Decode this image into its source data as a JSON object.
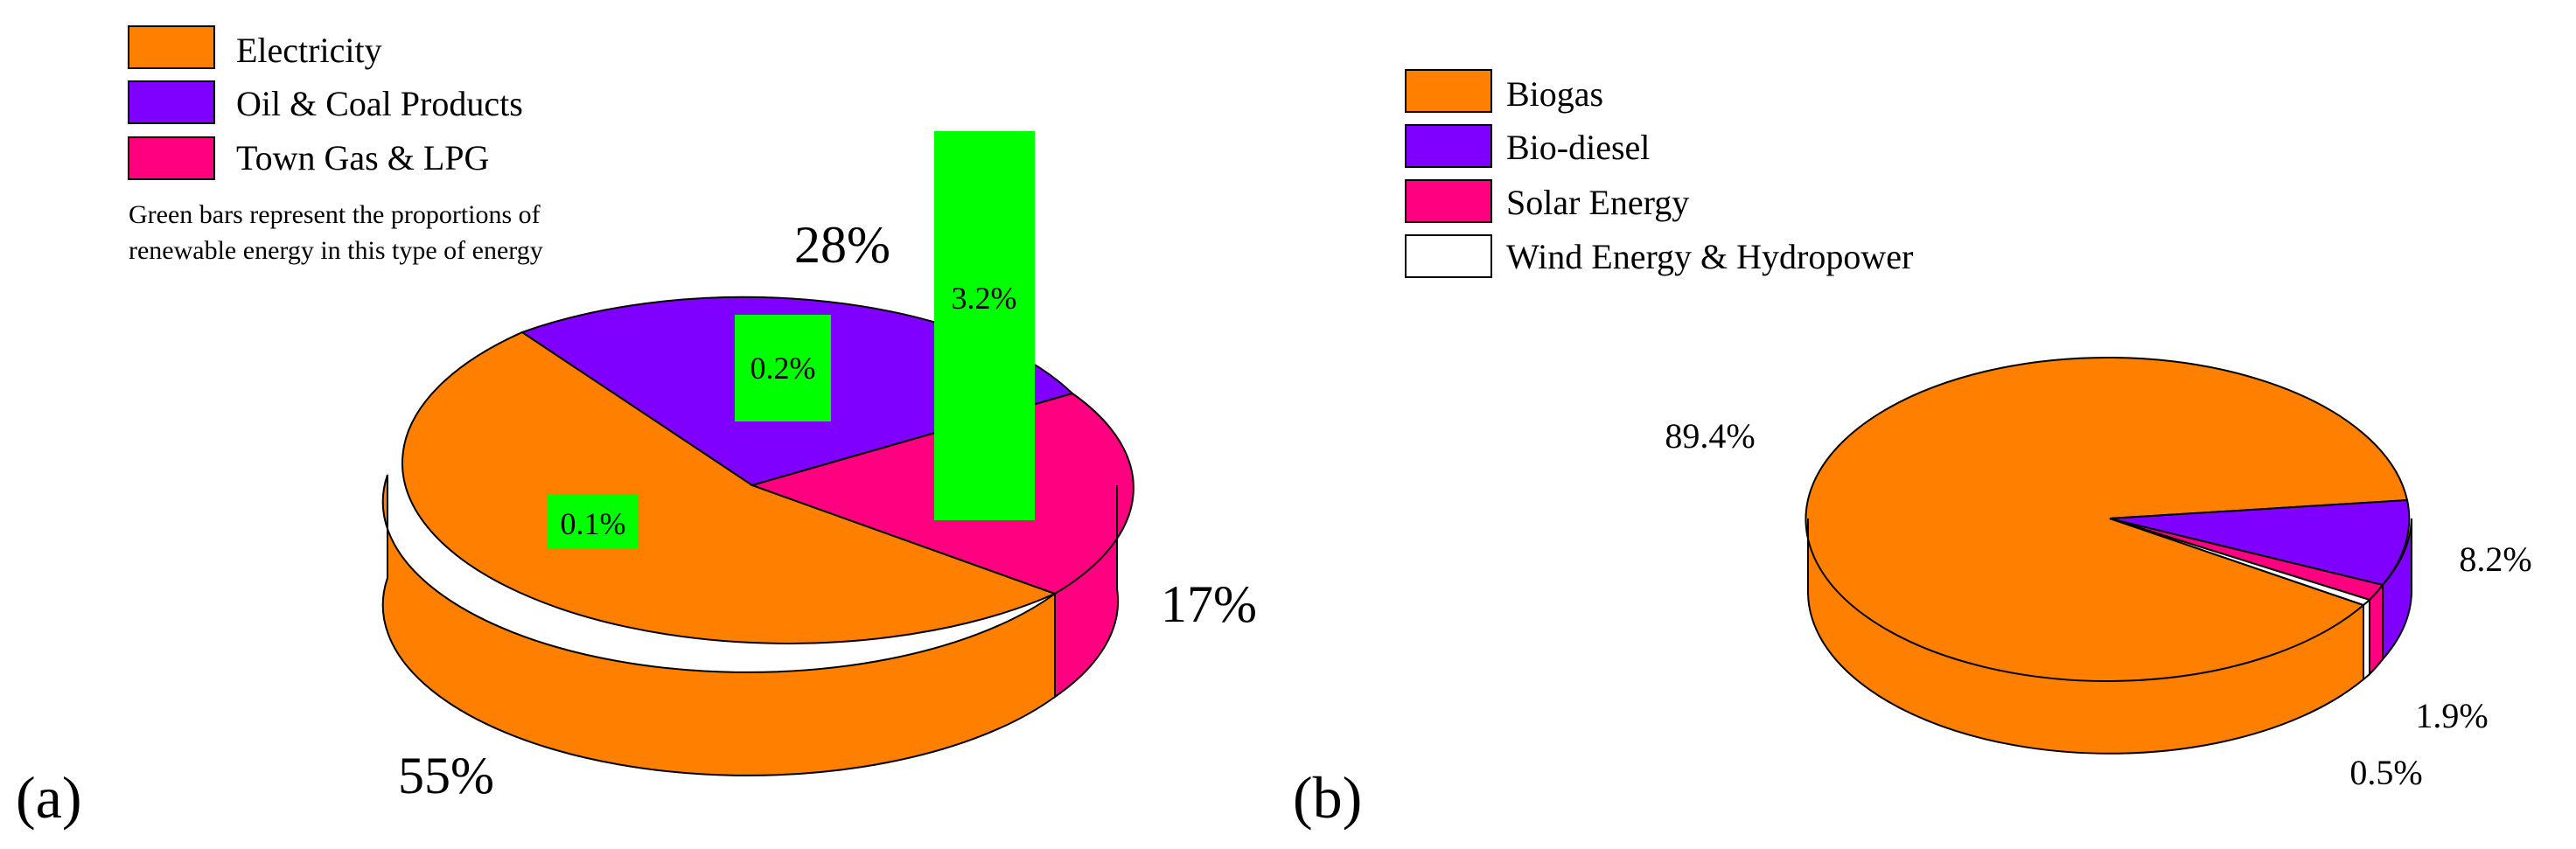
{
  "chart_data": [
    {
      "type": "pie",
      "panel_label": "(a)",
      "legend": {
        "placement": "top-left",
        "entries": [
          {
            "label": "Electricity",
            "color": "#ff8000"
          },
          {
            "label": "Oil & Coal Products",
            "color": "#8000ff"
          },
          {
            "label": "Town Gas & LPG",
            "color": "#ff0080"
          }
        ],
        "note_lines": [
          "Green bars represent the proportions of",
          "renewable energy in this type of energy"
        ]
      },
      "slices": [
        {
          "name": "Electricity",
          "value": 55,
          "label": "55%",
          "color": "#ff8000"
        },
        {
          "name": "Oil & Coal Products",
          "value": 28,
          "label": "28%",
          "color": "#8000ff"
        },
        {
          "name": "Town Gas & LPG",
          "value": 17,
          "label": "17%",
          "color": "#ff0080"
        }
      ],
      "renewable_bars": [
        {
          "category": "Electricity",
          "value": 0.1,
          "label": "0.1%",
          "color": "#00ff00"
        },
        {
          "category": "Oil & Coal Products",
          "value": 0.2,
          "label": "0.2%",
          "color": "#00ff00"
        },
        {
          "category": "Town Gas & LPG",
          "value": 3.2,
          "label": "3.2%",
          "color": "#00ff00"
        }
      ]
    },
    {
      "type": "pie",
      "panel_label": "(b)",
      "legend": {
        "placement": "top-left",
        "entries": [
          {
            "label": "Biogas",
            "color": "#ff8000"
          },
          {
            "label": "Bio-diesel",
            "color": "#8000ff"
          },
          {
            "label": "Solar Energy",
            "color": "#ff0080"
          },
          {
            "label": "Wind Energy & Hydropower",
            "color": "#ffffff"
          }
        ]
      },
      "slices": [
        {
          "name": "Biogas",
          "value": 89.4,
          "label": "89.4%",
          "color": "#ff8000"
        },
        {
          "name": "Bio-diesel",
          "value": 8.2,
          "label": "8.2%",
          "color": "#8000ff"
        },
        {
          "name": "Solar Energy",
          "value": 1.9,
          "label": "1.9%",
          "color": "#ff0080"
        },
        {
          "name": "Wind Energy & Hydropower",
          "value": 0.5,
          "label": "0.5%",
          "color": "#ffffff"
        }
      ]
    }
  ]
}
